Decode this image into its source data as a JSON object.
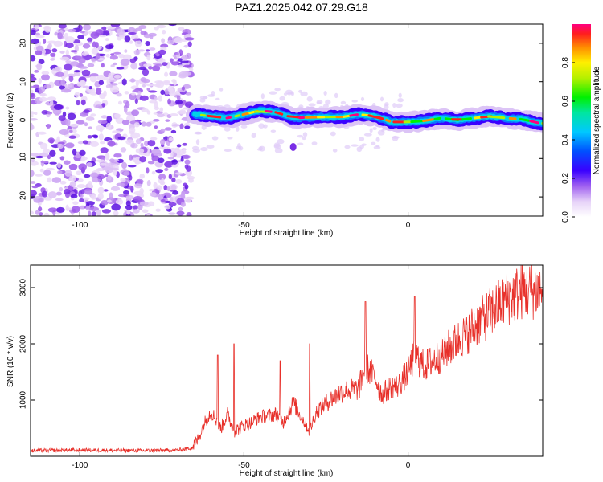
{
  "title": "PAZ1.2025.042.07.29.G18",
  "chart_data": [
    {
      "type": "heatmap",
      "xlabel": "Height of straight line (km)",
      "ylabel": "Frequency (Hz)",
      "xlim": [
        -115,
        41
      ],
      "ylim": [
        -25,
        25
      ],
      "xticks": [
        -100,
        -50,
        0
      ],
      "yticks": [
        -20,
        -10,
        0,
        10,
        20
      ],
      "colorbar": {
        "label": "Normalized spectral amplitude",
        "range": [
          0,
          1
        ],
        "ticks": [
          "0.0",
          "0.2",
          "0.4",
          "0.6",
          "0.8"
        ]
      },
      "ridge": {
        "description_values": "dominant frequency (Hz) vs height (km)",
        "x": [
          -65,
          -60,
          -55,
          -50,
          -45,
          -40,
          -35,
          -30,
          -25,
          -20,
          -15,
          -10,
          -5,
          0,
          5,
          10,
          15,
          20,
          25,
          30,
          35,
          40
        ],
        "y": [
          1.5,
          1.0,
          0.5,
          1.5,
          2.5,
          2.0,
          0.5,
          0.7,
          0.8,
          0.8,
          1.5,
          1.0,
          -0.5,
          -0.5,
          -0.2,
          0.5,
          0.0,
          0.5,
          1.0,
          0.5,
          0.2,
          -0.8
        ]
      },
      "noise_region_x": [
        -115,
        -66
      ],
      "blob": {
        "x": -35,
        "y": -7
      }
    },
    {
      "type": "line",
      "xlabel": "Height of straight line (km)",
      "ylabel": "SNR (10 * v/v)",
      "xlim": [
        -115,
        41
      ],
      "ylim": [
        0,
        3400
      ],
      "xticks": [
        -100,
        -50,
        0
      ],
      "yticks": [
        1000,
        2000,
        3000
      ],
      "series": [
        {
          "color": "#e8302a",
          "x": [
            -115,
            -100,
            -80,
            -70,
            -66,
            -64,
            -62,
            -60,
            -57,
            -55,
            -53,
            -50,
            -48,
            -45,
            -40,
            -38,
            -35,
            -30,
            -28,
            -25,
            -20,
            -15,
            -13,
            -10,
            -8,
            -5,
            -3,
            0,
            2,
            5,
            10,
            15,
            20,
            25,
            30,
            35,
            40
          ],
          "values": [
            100,
            110,
            100,
            110,
            150,
            300,
            600,
            800,
            500,
            750,
            450,
            550,
            600,
            700,
            750,
            600,
            950,
            450,
            800,
            950,
            1150,
            1200,
            1600,
            1400,
            1100,
            1250,
            1250,
            1500,
            1800,
            1600,
            1800,
            2050,
            2300,
            2550,
            2800,
            2950,
            2950
          ],
          "spikes": [
            {
              "x": -58,
              "y": 1800
            },
            {
              "x": -53,
              "y": 2000
            },
            {
              "x": -39,
              "y": 1700
            },
            {
              "x": -30,
              "y": 2000
            },
            {
              "x": -13,
              "y": 2750
            },
            {
              "x": 2,
              "y": 2850
            }
          ]
        }
      ]
    }
  ]
}
